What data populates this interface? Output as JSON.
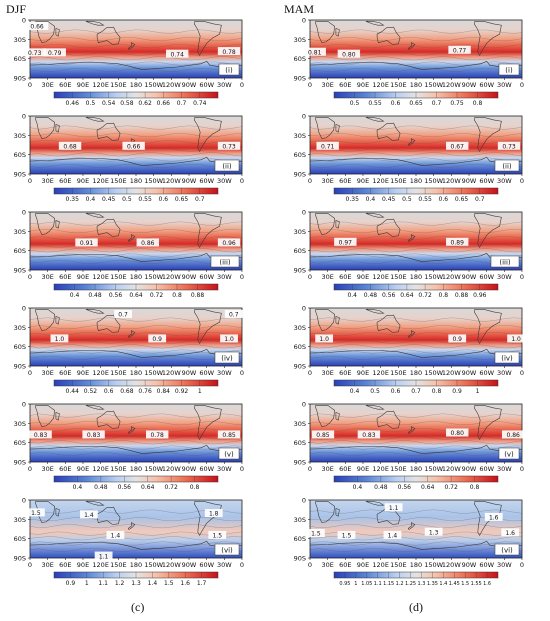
{
  "columns": [
    {
      "season": "DJF",
      "footer": "(c)"
    },
    {
      "season": "MAM",
      "footer": "(d)"
    }
  ],
  "colors": {
    "cold": "#2a3fb8",
    "cool": "#9cc0ea",
    "neutral": "#d9d9d9",
    "warm": "#f1a385",
    "hot": "#d1151b",
    "land": "#3a3a3a"
  },
  "chart_data": [
    {
      "type": "heatmap",
      "column": "DJF",
      "panel": "(i)",
      "x_ticks": [
        "0",
        "30E",
        "60E",
        "90E",
        "120E",
        "150E",
        "180",
        "150W",
        "120W",
        "90W",
        "60W",
        "30W",
        "0"
      ],
      "y_ticks": [
        "0",
        "30S",
        "60S",
        "90S"
      ],
      "colorbar_ticks": [
        "0.46",
        "0.5",
        "0.54",
        "0.58",
        "0.62",
        "0.66",
        "0.7",
        "0.74"
      ],
      "contour_labels": [
        {
          "text": "0.66",
          "lon": 12,
          "lat": -10
        },
        {
          "text": "0.73",
          "lon": 8,
          "lat": -51
        },
        {
          "text": "0.79",
          "lon": 42,
          "lat": -51
        },
        {
          "text": "0.74",
          "lon": 250,
          "lat": -53
        },
        {
          "text": "0.78",
          "lon": 338,
          "lat": -49
        }
      ]
    },
    {
      "type": "heatmap",
      "column": "DJF",
      "panel": "(ii)",
      "x_ticks": [
        "0",
        "30E",
        "60E",
        "90E",
        "120E",
        "150E",
        "180",
        "150W",
        "120W",
        "90W",
        "60W",
        "30W",
        "0"
      ],
      "y_ticks": [
        "0",
        "30S",
        "60S",
        "90S"
      ],
      "colorbar_ticks": [
        "0.35",
        "0.4",
        "0.45",
        "0.5",
        "0.55",
        "0.6",
        "0.65",
        "0.7"
      ],
      "contour_labels": [
        {
          "text": "0.68",
          "lon": 68,
          "lat": -47
        },
        {
          "text": "0.66",
          "lon": 176,
          "lat": -47
        },
        {
          "text": "0.73",
          "lon": 338,
          "lat": -47
        }
      ]
    },
    {
      "type": "heatmap",
      "column": "DJF",
      "panel": "(iii)",
      "x_ticks": [
        "0",
        "30E",
        "60E",
        "90E",
        "120E",
        "150E",
        "180",
        "150W",
        "120W",
        "90W",
        "60W",
        "30W",
        "0"
      ],
      "y_ticks": [
        "0",
        "30S",
        "60S",
        "90S"
      ],
      "colorbar_ticks": [
        "0.4",
        "0.48",
        "0.56",
        "0.64",
        "0.72",
        "0.8",
        "0.88"
      ],
      "contour_labels": [
        {
          "text": "0.91",
          "lon": 96,
          "lat": -48
        },
        {
          "text": "0.86",
          "lon": 200,
          "lat": -48
        },
        {
          "text": "0.96",
          "lon": 338,
          "lat": -48
        }
      ]
    },
    {
      "type": "heatmap",
      "column": "DJF",
      "panel": "(iv)",
      "x_ticks": [
        "0",
        "30E",
        "60E",
        "90E",
        "120E",
        "150E",
        "180",
        "150W",
        "120W",
        "90W",
        "60W",
        "30W",
        "0"
      ],
      "y_ticks": [
        "0",
        "30S",
        "60S",
        "90S"
      ],
      "colorbar_ticks": [
        "0.44",
        "0.52",
        "0.6",
        "0.68",
        "0.76",
        "0.84",
        "0.92",
        "1"
      ],
      "contour_labels": [
        {
          "text": "0.7",
          "lon": 158,
          "lat": -10
        },
        {
          "text": "0.7",
          "lon": 346,
          "lat": -10
        },
        {
          "text": "1.0",
          "lon": 50,
          "lat": -48
        },
        {
          "text": "0.9",
          "lon": 216,
          "lat": -48
        },
        {
          "text": "1.0",
          "lon": 338,
          "lat": -48
        }
      ]
    },
    {
      "type": "heatmap",
      "column": "DJF",
      "panel": "(v)",
      "x_ticks": [
        "0",
        "30E",
        "60E",
        "90E",
        "120E",
        "150E",
        "180",
        "150W",
        "120W",
        "90W",
        "60W",
        "30W",
        "0"
      ],
      "y_ticks": [
        "0",
        "30S",
        "60S",
        "90S"
      ],
      "colorbar_ticks": [
        "0.4",
        "0.48",
        "0.56",
        "0.64",
        "0.72",
        "0.8"
      ],
      "contour_labels": [
        {
          "text": "0.83",
          "lon": 18,
          "lat": -48
        },
        {
          "text": "0.83",
          "lon": 108,
          "lat": -48
        },
        {
          "text": "0.78",
          "lon": 216,
          "lat": -48
        },
        {
          "text": "0.85",
          "lon": 338,
          "lat": -48
        }
      ]
    },
    {
      "type": "heatmap",
      "column": "DJF",
      "panel": "(vi)",
      "x_ticks": [
        "0",
        "30E",
        "60E",
        "90E",
        "120E",
        "150E",
        "180",
        "150W",
        "120W",
        "90W",
        "60W",
        "30W",
        "0"
      ],
      "y_ticks": [
        "0",
        "30S",
        "60S",
        "90S"
      ],
      "colorbar_ticks": [
        "0.9",
        "1",
        "1.1",
        "1.2",
        "1.3",
        "1.4",
        "1.5",
        "1.6",
        "1.7"
      ],
      "contour_labels": [
        {
          "text": "1.5",
          "lon": 10,
          "lat": -20
        },
        {
          "text": "1.4",
          "lon": 100,
          "lat": -23
        },
        {
          "text": "1.4",
          "lon": 145,
          "lat": -55
        },
        {
          "text": "1.1",
          "lon": 125,
          "lat": -87
        },
        {
          "text": "1.8",
          "lon": 312,
          "lat": -21
        },
        {
          "text": "1.5",
          "lon": 318,
          "lat": -55
        }
      ]
    },
    {
      "type": "heatmap",
      "column": "MAM",
      "panel": "(i)",
      "x_ticks": [
        "0",
        "30E",
        "60E",
        "90E",
        "120E",
        "150E",
        "180",
        "150W",
        "120W",
        "90W",
        "60W",
        "30W",
        "0"
      ],
      "y_ticks": [
        "0",
        "30S",
        "60S",
        "90S"
      ],
      "colorbar_ticks": [
        "0.5",
        "0.55",
        "0.6",
        "0.65",
        "0.7",
        "0.75",
        "0.8"
      ],
      "contour_labels": [
        {
          "text": "0.81",
          "lon": 8,
          "lat": -50
        },
        {
          "text": "0.80",
          "lon": 66,
          "lat": -53
        },
        {
          "text": "0.77",
          "lon": 254,
          "lat": -47
        }
      ]
    },
    {
      "type": "heatmap",
      "column": "MAM",
      "panel": "(ii)",
      "x_ticks": [
        "0",
        "30E",
        "60E",
        "90E",
        "120E",
        "150E",
        "180",
        "150W",
        "120W",
        "90W",
        "60W",
        "30W",
        "0"
      ],
      "y_ticks": [
        "0",
        "30S",
        "60S",
        "90S"
      ],
      "colorbar_ticks": [
        "0.35",
        "0.4",
        "0.45",
        "0.5",
        "0.55",
        "0.6",
        "0.65",
        "0.7"
      ],
      "contour_labels": [
        {
          "text": "0.71",
          "lon": 30,
          "lat": -47
        },
        {
          "text": "0.67",
          "lon": 250,
          "lat": -47
        },
        {
          "text": "0.73",
          "lon": 338,
          "lat": -47
        }
      ]
    },
    {
      "type": "heatmap",
      "column": "MAM",
      "panel": "(iii)",
      "x_ticks": [
        "0",
        "30E",
        "60E",
        "90E",
        "120E",
        "150E",
        "180",
        "150W",
        "120W",
        "90W",
        "60W",
        "30W",
        "0"
      ],
      "y_ticks": [
        "0",
        "30S",
        "60S",
        "90S"
      ],
      "colorbar_ticks": [
        "0.4",
        "0.48",
        "0.56",
        "0.64",
        "0.72",
        "0.8",
        "0.88",
        "0.96"
      ],
      "contour_labels": [
        {
          "text": "0.97",
          "lon": 60,
          "lat": -47
        },
        {
          "text": "0.89",
          "lon": 250,
          "lat": -47
        }
      ]
    },
    {
      "type": "heatmap",
      "column": "MAM",
      "panel": "(iv)",
      "x_ticks": [
        "0",
        "30E",
        "60E",
        "90E",
        "120E",
        "150E",
        "180",
        "150W",
        "120W",
        "90W",
        "60W",
        "30W",
        "0"
      ],
      "y_ticks": [
        "0",
        "30S",
        "60S",
        "90S"
      ],
      "colorbar_ticks": [
        "0.4",
        "0.5",
        "0.6",
        "0.7",
        "0.8",
        "0.9",
        "1"
      ],
      "contour_labels": [
        {
          "text": "1.0",
          "lon": 24,
          "lat": -48
        },
        {
          "text": "0.9",
          "lon": 250,
          "lat": -48
        },
        {
          "text": "1.0",
          "lon": 350,
          "lat": -48
        }
      ]
    },
    {
      "type": "heatmap",
      "column": "MAM",
      "panel": "(v)",
      "x_ticks": [
        "0",
        "30E",
        "60E",
        "90E",
        "120E",
        "150E",
        "180",
        "150W",
        "120W",
        "90W",
        "60W",
        "30W",
        "0"
      ],
      "y_ticks": [
        "0",
        "30S",
        "60S",
        "90S"
      ],
      "colorbar_ticks": [
        "0.4",
        "0.48",
        "0.56",
        "0.64",
        "0.72",
        "0.8"
      ],
      "contour_labels": [
        {
          "text": "0.85",
          "lon": 22,
          "lat": -48
        },
        {
          "text": "0.83",
          "lon": 100,
          "lat": -48
        },
        {
          "text": "0.80",
          "lon": 250,
          "lat": -45
        },
        {
          "text": "0.86",
          "lon": 345,
          "lat": -48
        }
      ]
    },
    {
      "type": "heatmap",
      "column": "MAM",
      "panel": "(vi)",
      "x_ticks": [
        "0",
        "30E",
        "60E",
        "90E",
        "120E",
        "150E",
        "180",
        "150W",
        "120W",
        "90W",
        "60W",
        "30W",
        "0"
      ],
      "y_ticks": [
        "0",
        "30S",
        "60S",
        "90S"
      ],
      "colorbar_ticks": [
        "0.95",
        "1",
        "1.05",
        "1.1",
        "1.15",
        "1.2",
        "1.25",
        "1.3",
        "1.35",
        "1.4",
        "1.45",
        "1.5",
        "1.55",
        "1.6"
      ],
      "contour_labels": [
        {
          "text": "1.1",
          "lon": 142,
          "lat": -12
        },
        {
          "text": "1.5",
          "lon": 10,
          "lat": -52
        },
        {
          "text": "1.5",
          "lon": 62,
          "lat": -55
        },
        {
          "text": "1.4",
          "lon": 140,
          "lat": -55
        },
        {
          "text": "1.3",
          "lon": 210,
          "lat": -50
        },
        {
          "text": "1.6",
          "lon": 312,
          "lat": -27
        },
        {
          "text": "1.6",
          "lon": 340,
          "lat": -51
        }
      ]
    }
  ]
}
